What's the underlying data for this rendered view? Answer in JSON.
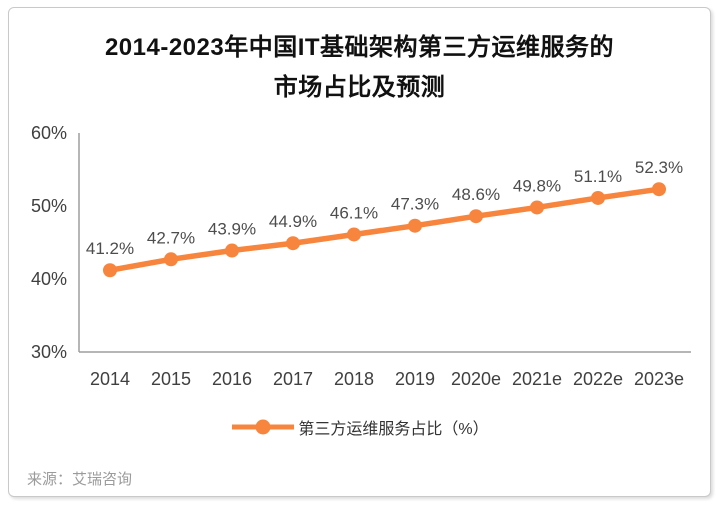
{
  "title": {
    "line1": "2014-2023年中国IT基础架构第三方运维服务的",
    "line2": "市场占比及预测"
  },
  "legend": {
    "label": "第三方运维服务占比（%）"
  },
  "source": "来源：艾瑞咨询",
  "colors": {
    "series": "#F7853D",
    "axis": "#9E9E9E",
    "data_label": "#4D4D4D",
    "tick_label": "#404040",
    "title_text": "#111111",
    "legend_text": "#333333",
    "source_text": "#9B9B9B",
    "card_border": "#C9C9C9"
  },
  "chart_data": {
    "type": "line",
    "title": "2014-2023年中国IT基础架构第三方运维服务的市场占比及预测",
    "categories": [
      "2014",
      "2015",
      "2016",
      "2017",
      "2018",
      "2019",
      "2020e",
      "2021e",
      "2022e",
      "2023e"
    ],
    "series": [
      {
        "name": "第三方运维服务占比（%）",
        "values": [
          41.2,
          42.7,
          43.9,
          44.9,
          46.1,
          47.3,
          48.6,
          49.8,
          51.1,
          52.3
        ]
      }
    ],
    "point_labels": [
      "41.2%",
      "42.7%",
      "43.9%",
      "44.9%",
      "46.1%",
      "47.3%",
      "48.6%",
      "49.8%",
      "51.1%",
      "52.3%"
    ],
    "xlabel": "",
    "ylabel": "",
    "ylim": [
      30,
      60
    ],
    "yticks": [
      {
        "value": 30,
        "label": "30%"
      },
      {
        "value": 40,
        "label": "40%"
      },
      {
        "value": 50,
        "label": "50%"
      },
      {
        "value": 60,
        "label": "60%"
      }
    ],
    "grid": false,
    "legend_position": "bottom",
    "marker": "circle"
  }
}
